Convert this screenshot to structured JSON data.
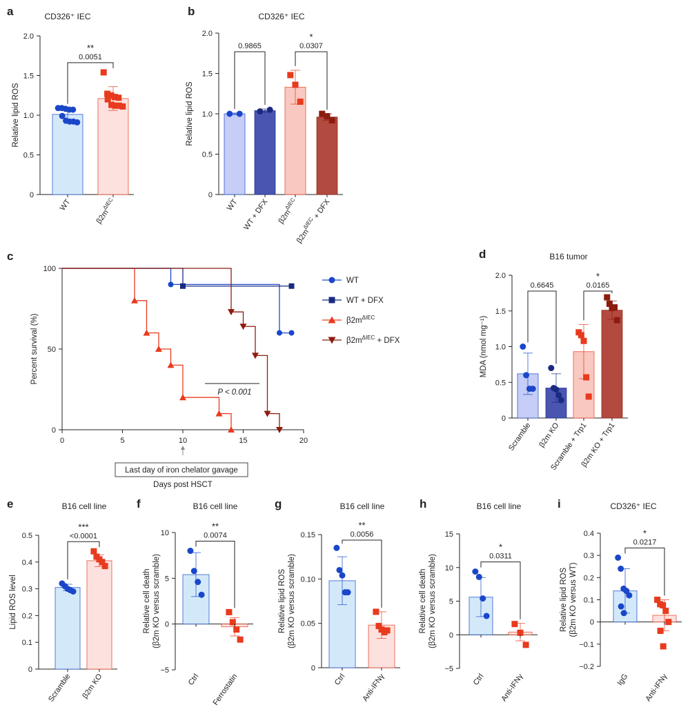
{
  "colors": {
    "blue": "#1a47c9",
    "navy": "#1a2a80",
    "red": "#e83a1e",
    "darkred": "#8c1c0e",
    "blue_fill": "#d3e9fa",
    "red_fill": "#fde1de",
    "lavender_fill": "#c6cdf6",
    "indigo_fill": "#4a55b2",
    "salmon_fill": "#f9c8c0",
    "brick_fill": "#b24a40"
  },
  "chart_data": [
    {
      "panel": "a",
      "type": "bar",
      "title": "CD326⁺ IEC",
      "ylabel": "Relative lipid ROS",
      "ylim": [
        0,
        2.0
      ],
      "yticks": [
        "0",
        "0.5",
        "1.0",
        "1.5",
        "2.0"
      ],
      "categories": [
        "WT",
        "β2m^ΔIEC"
      ],
      "series": [
        {
          "mean": 1.01,
          "sd": 0.08,
          "fill": "blue_fill",
          "marker": "circle",
          "color": "blue",
          "points": [
            1.09,
            1.09,
            1.08,
            1.07,
            1.07,
            0.99,
            0.93,
            0.92,
            0.92,
            0.91
          ]
        },
        {
          "mean": 1.21,
          "sd": 0.15,
          "fill": "red_fill",
          "marker": "square",
          "color": "red",
          "points": [
            1.54,
            1.27,
            1.25,
            1.23,
            1.22,
            1.2,
            1.13,
            1.12,
            1.12,
            1.11
          ]
        }
      ],
      "comparisons": [
        {
          "from": 0,
          "to": 1,
          "stars": "**",
          "p": "0.0051"
        }
      ]
    },
    {
      "panel": "b",
      "type": "bar",
      "title": "CD326⁺ IEC",
      "ylabel": "Relative lipid ROS",
      "ylim": [
        0,
        2.0
      ],
      "yticks": [
        "0",
        "0.5",
        "1.0",
        "1.5",
        "2.0"
      ],
      "categories": [
        "WT",
        "WT + DFX",
        "β2m^ΔIEC",
        "β2m^ΔIEC + DFX"
      ],
      "series": [
        {
          "mean": 1.0,
          "sd": 0.01,
          "fill": "lavender_fill",
          "marker": "circle",
          "color": "blue",
          "points": [
            1.0,
            1.0
          ]
        },
        {
          "mean": 1.04,
          "sd": 0.02,
          "fill": "indigo_fill",
          "marker": "circle",
          "color": "navy",
          "points": [
            1.03,
            1.05
          ]
        },
        {
          "mean": 1.33,
          "sd": 0.21,
          "fill": "salmon_fill",
          "marker": "square",
          "color": "red",
          "points": [
            1.48,
            1.36,
            1.15
          ]
        },
        {
          "mean": 0.96,
          "sd": 0.04,
          "fill": "brick_fill",
          "marker": "square",
          "color": "darkred",
          "points": [
            1.0,
            0.97,
            0.92
          ]
        }
      ],
      "comparisons": [
        {
          "from": 0,
          "to": 1,
          "stars": "",
          "p": "0.9865"
        },
        {
          "from": 2,
          "to": 3,
          "stars": "*",
          "p": "0.0307"
        }
      ]
    },
    {
      "panel": "c",
      "type": "line",
      "xlabel": "Days post HSCT",
      "ylabel": "Percent survival (%)",
      "xlim": [
        0,
        20
      ],
      "ylim": [
        0,
        100
      ],
      "xticks": [
        "0",
        "5",
        "10",
        "15",
        "20"
      ],
      "yticks": [
        "0",
        "50",
        "100"
      ],
      "annotation": "P < 0.001",
      "callout": "Last day of iron chelator gavage",
      "callout_x": 10,
      "series": [
        {
          "name": "WT",
          "color": "blue",
          "marker": "circle",
          "marker_fill": "blue",
          "steps": [
            [
              0,
              100
            ],
            [
              9,
              90
            ],
            [
              18,
              60
            ],
            [
              19,
              60
            ]
          ]
        },
        {
          "name": "WT + DFX",
          "color": "navy",
          "marker": "square",
          "marker_fill": "navy",
          "steps": [
            [
              0,
              100
            ],
            [
              10,
              89
            ],
            [
              19,
              89
            ]
          ]
        },
        {
          "name": "β2m^ΔIEC",
          "color": "red",
          "marker": "triangle",
          "marker_fill": "red",
          "steps": [
            [
              0,
              100
            ],
            [
              6,
              80
            ],
            [
              7,
              60
            ],
            [
              8,
              50
            ],
            [
              9,
              40
            ],
            [
              10,
              20
            ],
            [
              13,
              10
            ],
            [
              14,
              0
            ]
          ]
        },
        {
          "name": "β2m^ΔIEC + DFX",
          "color": "darkred",
          "marker": "triangle-down",
          "marker_fill": "darkred",
          "steps": [
            [
              0,
              100
            ],
            [
              14,
              73
            ],
            [
              15,
              64
            ],
            [
              16,
              46
            ],
            [
              17,
              10
            ],
            [
              18,
              0
            ]
          ]
        }
      ]
    },
    {
      "panel": "d",
      "type": "bar",
      "title": "B16 tumor",
      "ylabel": "MDA (nmol mg⁻¹)",
      "ylim": [
        0,
        2.0
      ],
      "yticks": [
        "0",
        "0.5",
        "1.0",
        "1.5",
        "2.0"
      ],
      "categories": [
        "Scramble",
        "β2m KO",
        "Scramble + Trp1",
        "β2m KO + Trp1"
      ],
      "series": [
        {
          "mean": 0.62,
          "sd": 0.29,
          "fill": "lavender_fill",
          "marker": "circle",
          "color": "blue",
          "points": [
            1.0,
            0.6,
            0.41,
            0.41
          ]
        },
        {
          "mean": 0.42,
          "sd": 0.2,
          "fill": "indigo_fill",
          "marker": "circle",
          "color": "navy",
          "points": [
            0.7,
            0.42,
            0.4,
            0.32,
            0.25
          ]
        },
        {
          "mean": 0.93,
          "sd": 0.38,
          "fill": "salmon_fill",
          "marker": "square",
          "color": "red",
          "points": [
            1.2,
            1.16,
            1.08,
            0.57,
            0.3
          ]
        },
        {
          "mean": 1.51,
          "sd": 0.13,
          "fill": "brick_fill",
          "marker": "square",
          "color": "darkred",
          "points": [
            1.69,
            1.6,
            1.54,
            1.55,
            1.37
          ]
        }
      ],
      "comparisons": [
        {
          "from": 0,
          "to": 1,
          "stars": "",
          "p": "0.6645"
        },
        {
          "from": 2,
          "to": 3,
          "stars": "*",
          "p": "0.0165"
        }
      ]
    },
    {
      "panel": "e",
      "type": "bar",
      "title": "B16 cell line",
      "ylabel": "Lipid ROS level",
      "ylim": [
        0,
        0.5
      ],
      "yticks": [
        "0",
        "0.1",
        "0.2",
        "0.3",
        "0.4",
        "0.5"
      ],
      "categories": [
        "Scramble",
        "β2m KO"
      ],
      "series": [
        {
          "mean": 0.305,
          "sd": 0.012,
          "fill": "blue_fill",
          "marker": "circle",
          "color": "blue",
          "points": [
            0.32,
            0.31,
            0.3,
            0.295,
            0.29
          ]
        },
        {
          "mean": 0.405,
          "sd": 0.022,
          "fill": "red_fill",
          "marker": "square",
          "color": "red",
          "points": [
            0.44,
            0.42,
            0.41,
            0.4,
            0.385
          ]
        }
      ],
      "comparisons": [
        {
          "from": 0,
          "to": 1,
          "stars": "***",
          "p": "<0.0001"
        }
      ]
    },
    {
      "panel": "f",
      "type": "bar",
      "title": "B16 cell line",
      "ylabel": "Relative cell death (β2m KO versus scramble)",
      "ylim": [
        -5,
        10
      ],
      "yticks": [
        "−5",
        "0",
        "5",
        "10"
      ],
      "categories": [
        "Ctrl",
        "Ferrostatin"
      ],
      "series": [
        {
          "mean": 5.4,
          "sd": 2.4,
          "fill": "blue_fill",
          "marker": "circle",
          "color": "blue",
          "points": [
            8.0,
            5.8,
            4.6,
            3.2
          ]
        },
        {
          "mean": -0.3,
          "sd": 1.0,
          "fill": "red_fill",
          "marker": "square",
          "color": "red",
          "points": [
            1.3,
            0.2,
            -0.6,
            -1.7
          ]
        }
      ],
      "comparisons": [
        {
          "from": 0,
          "to": 1,
          "stars": "**",
          "p": "0.0074"
        }
      ]
    },
    {
      "panel": "g",
      "type": "bar",
      "title": "B16 cell line",
      "ylabel": "Relative lipid ROS (β2m KO versus scramble)",
      "ylim": [
        0,
        0.15
      ],
      "yticks": [
        "0",
        "0.05",
        "0.10",
        "0.15"
      ],
      "categories": [
        "Ctrl",
        "Anti-IFNγ"
      ],
      "series": [
        {
          "mean": 0.098,
          "sd": 0.027,
          "fill": "blue_fill",
          "marker": "circle",
          "color": "blue",
          "points": [
            0.135,
            0.11,
            0.104,
            0.085,
            0.085
          ]
        },
        {
          "mean": 0.048,
          "sd": 0.015,
          "fill": "red_fill",
          "marker": "square",
          "color": "red",
          "points": [
            0.063,
            0.047,
            0.043,
            0.04,
            0.042
          ]
        }
      ],
      "comparisons": [
        {
          "from": 0,
          "to": 1,
          "stars": "**",
          "p": "0.0056"
        }
      ]
    },
    {
      "panel": "h",
      "type": "bar",
      "title": "B16 cell line",
      "ylabel": "Relative cell death (β2m KO versus scramble)",
      "ylim": [
        -5,
        15
      ],
      "yticks": [
        "−5",
        "0",
        "5",
        "10",
        "15"
      ],
      "categories": [
        "Ctrl",
        "Anti-IFNγ"
      ],
      "series": [
        {
          "mean": 5.6,
          "sd": 2.9,
          "fill": "blue_fill",
          "marker": "circle",
          "color": "blue",
          "points": [
            9.4,
            8.6,
            5.4,
            2.8
          ]
        },
        {
          "mean": 0.4,
          "sd": 1.3,
          "fill": "red_fill",
          "marker": "square",
          "color": "red",
          "points": [
            1.6,
            0.3,
            -1.5
          ]
        }
      ],
      "comparisons": [
        {
          "from": 0,
          "to": 1,
          "stars": "*",
          "p": "0.0311"
        }
      ]
    },
    {
      "panel": "i",
      "type": "bar",
      "title": "CD326⁺ IEC",
      "ylabel": "Relative lipid ROS (β2m KO versus WT)",
      "ylim": [
        -0.2,
        0.4
      ],
      "yticks": [
        "−0.2",
        "−0.1",
        "0",
        "0.1",
        "0.2",
        "0.3",
        "0.4"
      ],
      "categories": [
        "IgG",
        "Anti-IFNγ"
      ],
      "series": [
        {
          "mean": 0.14,
          "sd": 0.1,
          "fill": "blue_fill",
          "marker": "circle",
          "color": "blue",
          "points": [
            0.29,
            0.24,
            0.15,
            0.14,
            0.12,
            0.07,
            0.04
          ]
        },
        {
          "mean": 0.03,
          "sd": 0.07,
          "fill": "red_fill",
          "marker": "square",
          "color": "red",
          "points": [
            0.1,
            0.08,
            0.075,
            0.05,
            0.0,
            -0.04,
            -0.11
          ]
        }
      ],
      "comparisons": [
        {
          "from": 0,
          "to": 1,
          "stars": "*",
          "p": "0.0217"
        }
      ]
    }
  ]
}
